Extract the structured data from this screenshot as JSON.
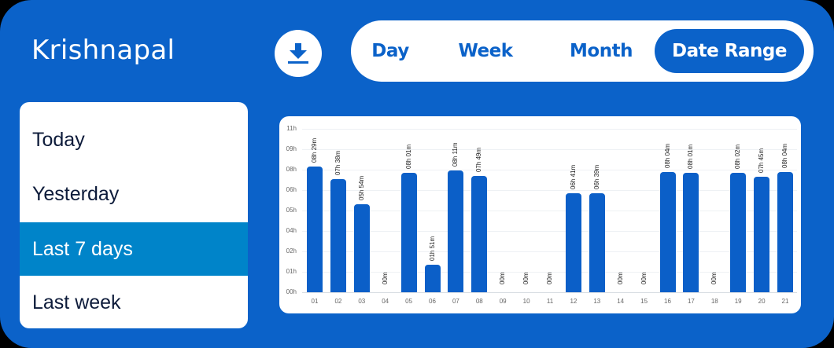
{
  "header": {
    "title": "Krishnapal",
    "download_icon": "download-icon"
  },
  "range_tabs": [
    {
      "label": "Day",
      "active": false
    },
    {
      "label": "Week",
      "active": false
    },
    {
      "label": "Month",
      "active": false
    },
    {
      "label": "Date Range",
      "active": true
    }
  ],
  "presets": [
    {
      "label": "Today",
      "active": false
    },
    {
      "label": "Yesterday",
      "active": false
    },
    {
      "label": "Last 7 days",
      "active": true
    },
    {
      "label": "Last week",
      "active": false
    }
  ],
  "colors": {
    "brand_blue": "#0b62c9",
    "bar_blue": "#0b5fc8",
    "preset_active": "#0084c9",
    "white": "#ffffff"
  },
  "chart_data": {
    "type": "bar",
    "title": "",
    "xlabel": "",
    "ylabel": "",
    "ylim": [
      0,
      11
    ],
    "grid": true,
    "legend": "none",
    "yticks": [
      "11h",
      "09h",
      "08h",
      "06h",
      "05h",
      "04h",
      "02h",
      "01h",
      "00h"
    ],
    "categories": [
      "01",
      "02",
      "03",
      "04",
      "05",
      "06",
      "07",
      "08",
      "09",
      "10",
      "11",
      "12",
      "13",
      "14",
      "15",
      "16",
      "17",
      "18",
      "19",
      "20",
      "21"
    ],
    "values_hours": [
      8.48,
      7.63,
      5.9,
      0,
      8.02,
      1.85,
      8.18,
      7.82,
      0,
      0,
      0,
      6.68,
      6.65,
      0,
      0,
      8.07,
      8.02,
      0,
      8.03,
      7.75,
      8.07
    ],
    "labels": [
      "08h 29m",
      "07h 38m",
      "05h 54m",
      "00m",
      "08h 01m",
      "01h 51m",
      "08h 11m",
      "07h 49m",
      "00m",
      "00m",
      "00m",
      "06h 41m",
      "06h 39m",
      "00m",
      "00m",
      "08h 04m",
      "08h 01m",
      "00m",
      "08h 02m",
      "07h 45m",
      "08h 04m"
    ]
  }
}
